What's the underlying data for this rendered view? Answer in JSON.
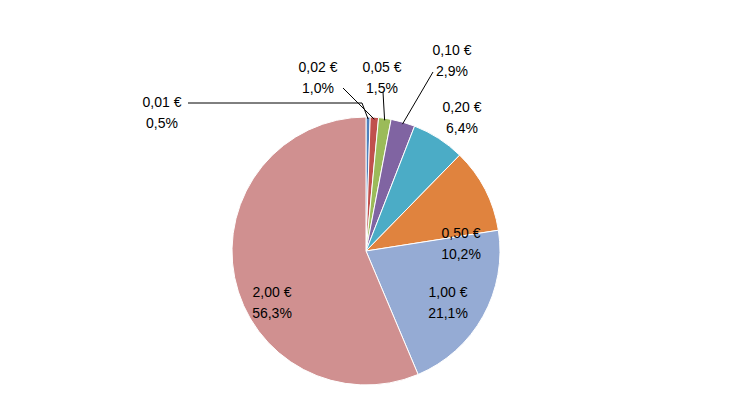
{
  "chart_data": {
    "type": "pie",
    "categories": [
      "0,01 €",
      "0,02 €",
      "0,05 €",
      "0,10 €",
      "0,20 €",
      "0,50 €",
      "1,00 €",
      "2,00 €"
    ],
    "values": [
      0.5,
      1.0,
      1.5,
      2.9,
      6.4,
      10.2,
      21.1,
      56.3
    ],
    "value_labels": [
      "0,5%",
      "1,0%",
      "1,5%",
      "2,9%",
      "6,4%",
      "10,2%",
      "21,1%",
      "56,3%"
    ],
    "colors": [
      "#4f81bd",
      "#c0504d",
      "#9bbb59",
      "#8064a2",
      "#4bacc6",
      "#e0833e",
      "#95abd4",
      "#d09090"
    ],
    "data_labels": true
  }
}
